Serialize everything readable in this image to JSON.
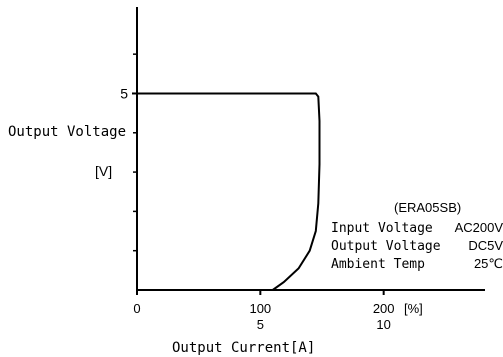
{
  "chart_data": {
    "type": "line",
    "model": "(ERA05SB)",
    "ylabel": "Output Voltage",
    "yunit": "[V]",
    "xlabel": "Output Current[A]",
    "x_unit_percent": "[%]",
    "y_ticks": [
      {
        "value": 5,
        "label": "5"
      }
    ],
    "x_ticks": [
      {
        "percent": 0,
        "label": "0",
        "label2": ""
      },
      {
        "percent": 100,
        "label": "100",
        "label2": "5"
      },
      {
        "percent": 200,
        "label": "200",
        "label2": "10"
      }
    ],
    "xlim_percent": [
      0,
      270
    ],
    "ylim": [
      0,
      7.2
    ],
    "minor_y_ticks": [
      1,
      2,
      3,
      4,
      6
    ],
    "series": [
      {
        "x_percent": [
          0,
          145,
          147,
          148,
          148,
          147,
          145,
          140,
          131,
          119,
          110
        ],
        "y": [
          5.0,
          5.0,
          4.92,
          4.3,
          3.2,
          2.2,
          1.5,
          1.0,
          0.55,
          0.2,
          0.0
        ]
      }
    ],
    "conditions": [
      {
        "label": "Input Voltage",
        "value": "AC200V"
      },
      {
        "label": "Output Voltage",
        "value": "DC5V"
      },
      {
        "label": "Ambient Temp",
        "value": "25℃"
      }
    ]
  }
}
